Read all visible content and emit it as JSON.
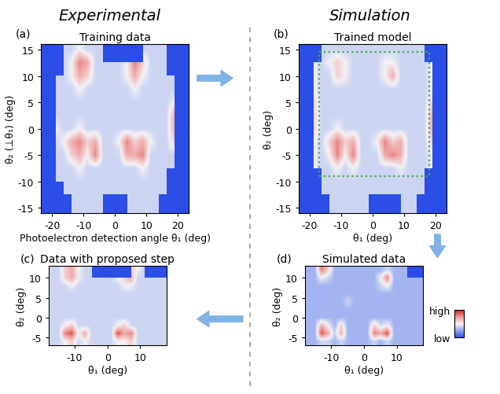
{
  "headings": {
    "left": "Experimental",
    "right": "Simulation"
  },
  "colorbar": {
    "range": [
      0,
      10
    ],
    "ticks": [
      {
        "value": 10,
        "label": "high"
      },
      {
        "value": 0,
        "label": "low"
      }
    ]
  },
  "chart_data": [
    {
      "type": "heatmap",
      "label": "(a)",
      "title": "Training data",
      "xlabel": "Photoelectron detection angle θ₁ (deg)",
      "ylabel": "θ₂ (⊥θ₁) (deg)",
      "xlim": [
        -23.5,
        23.5
      ],
      "ylim": [
        -16,
        16
      ],
      "xticks": [
        -20,
        -10,
        0,
        10,
        20
      ],
      "yticks": [
        -15,
        -10,
        -5,
        0,
        5,
        10,
        15
      ],
      "cell_x": [
        -23.75,
        -21.25,
        -18.75,
        -16.25,
        -13.75,
        -11.25,
        -8.75,
        -6.25,
        -3.75,
        -1.25,
        1.25,
        3.75,
        6.25,
        8.75,
        11.25,
        13.75,
        16.25,
        18.75,
        21.25,
        23.75
      ],
      "cell_y": [
        15,
        12.5,
        10,
        7.5,
        5,
        2.5,
        0,
        -2.5,
        -5,
        -7.5,
        -10,
        -12.5,
        -15
      ],
      "cells": [
        [
          null,
          null,
          null,
          4,
          4,
          5,
          4,
          4,
          4,
          null,
          null,
          null,
          null,
          4,
          4,
          4,
          4,
          null,
          null,
          null
        ],
        [
          null,
          null,
          null,
          4,
          5,
          8,
          7,
          4,
          4,
          4,
          4,
          5,
          8,
          6,
          4,
          4,
          4,
          null,
          null,
          null
        ],
        [
          null,
          null,
          4,
          4,
          5,
          7,
          6,
          4,
          4,
          4,
          4,
          5,
          7,
          5,
          4,
          4,
          4,
          4,
          null,
          null
        ],
        [
          null,
          null,
          4,
          4,
          4,
          5,
          4,
          4,
          4,
          4,
          4,
          4,
          5,
          4,
          4,
          4,
          4,
          4,
          null,
          null
        ],
        [
          null,
          null,
          4,
          4,
          4,
          4,
          4,
          4,
          4,
          4,
          4,
          4,
          4,
          4,
          4,
          4,
          4,
          5,
          null,
          null
        ],
        [
          null,
          null,
          4,
          4,
          4,
          4,
          4,
          4,
          4,
          4,
          4,
          4,
          4,
          4,
          4,
          4,
          4,
          7,
          null,
          null
        ],
        [
          null,
          null,
          5,
          4,
          4,
          5,
          4,
          4,
          4,
          4,
          4,
          4,
          4,
          4,
          4,
          4,
          4,
          7,
          null,
          null
        ],
        [
          null,
          null,
          4,
          5,
          7,
          8,
          6,
          7,
          4,
          4,
          5,
          8,
          6,
          7,
          5,
          4,
          4,
          6,
          null,
          null
        ],
        [
          null,
          null,
          4,
          4,
          6,
          7,
          5,
          8,
          4,
          4,
          4,
          7,
          7,
          8,
          4,
          4,
          4,
          4,
          null,
          null
        ],
        [
          null,
          null,
          4,
          4,
          4,
          5,
          4,
          4,
          4,
          4,
          4,
          4,
          4,
          5,
          4,
          4,
          4,
          4,
          null,
          null
        ],
        [
          null,
          null,
          4,
          4,
          4,
          4,
          4,
          4,
          4,
          4,
          4,
          4,
          4,
          4,
          4,
          4,
          4,
          null,
          null,
          null
        ],
        [
          null,
          null,
          null,
          4,
          4,
          4,
          4,
          4,
          4,
          4,
          4,
          4,
          4,
          4,
          4,
          4,
          4,
          null,
          null,
          null
        ],
        [
          null,
          null,
          null,
          null,
          4,
          4,
          4,
          4,
          4,
          null,
          null,
          4,
          4,
          4,
          4,
          4,
          null,
          null,
          null,
          null
        ]
      ]
    },
    {
      "type": "heatmap",
      "label": "(b)",
      "title": "Trained model",
      "xlabel": "θ₁ (deg)",
      "ylabel": "θ₂ (deg)",
      "xlim": [
        -23.5,
        23.5
      ],
      "ylim": [
        -16,
        16
      ],
      "xticks": [
        -20,
        -10,
        0,
        10,
        20
      ],
      "yticks": [
        -15,
        -10,
        -5,
        0,
        5,
        10,
        15
      ],
      "region": {
        "x": [
          -17,
          18
        ],
        "y": [
          -9,
          14.5
        ]
      },
      "cell_x": [
        -23.75,
        -21.25,
        -18.75,
        -16.25,
        -13.75,
        -11.25,
        -8.75,
        -6.25,
        -3.75,
        -1.25,
        1.25,
        3.75,
        6.25,
        8.75,
        11.25,
        13.75,
        16.25,
        18.75,
        21.25,
        23.75
      ],
      "cell_y": [
        15,
        12.5,
        10,
        7.5,
        5,
        2.5,
        0,
        -2.5,
        -5,
        -7.5,
        -10,
        -12.5,
        -15
      ],
      "cells": [
        [
          null,
          null,
          null,
          4,
          4,
          4,
          4,
          4,
          4,
          4,
          4,
          4,
          4,
          4,
          4,
          4,
          4,
          null,
          null,
          null
        ],
        [
          null,
          null,
          5,
          4,
          5,
          6,
          5,
          4,
          4,
          4,
          4,
          5,
          5,
          4,
          4,
          4,
          4,
          5,
          null,
          null
        ],
        [
          null,
          null,
          5,
          4,
          4,
          6,
          5,
          4,
          4,
          4,
          4,
          5,
          7,
          4,
          4,
          4,
          4,
          5,
          null,
          null
        ],
        [
          null,
          null,
          5,
          4,
          4,
          4,
          4,
          4,
          4,
          4,
          4,
          4,
          4,
          4,
          4,
          4,
          4,
          5,
          null,
          null
        ],
        [
          null,
          null,
          6,
          4,
          4,
          4,
          4,
          4,
          4,
          4,
          4,
          4,
          4,
          4,
          4,
          4,
          4,
          6,
          null,
          null
        ],
        [
          null,
          null,
          6,
          4,
          4,
          4,
          4,
          4,
          4,
          4,
          4,
          4,
          4,
          4,
          4,
          4,
          4,
          7,
          null,
          null
        ],
        [
          null,
          null,
          6,
          4,
          4,
          5,
          4,
          4,
          4,
          4,
          4,
          4,
          4,
          4,
          4,
          4,
          4,
          7,
          null,
          null
        ],
        [
          null,
          null,
          5,
          4,
          6,
          8,
          6,
          7,
          4,
          4,
          5,
          8,
          6,
          7,
          4,
          4,
          4,
          6,
          null,
          null
        ],
        [
          null,
          null,
          5,
          4,
          5,
          8,
          5,
          8,
          4,
          4,
          4,
          7,
          8,
          7,
          4,
          4,
          4,
          5,
          null,
          null
        ],
        [
          null,
          null,
          5,
          4,
          4,
          5,
          4,
          5,
          4,
          4,
          4,
          4,
          4,
          5,
          4,
          4,
          4,
          5,
          null,
          null
        ],
        [
          null,
          null,
          null,
          4,
          4,
          4,
          4,
          4,
          4,
          4,
          4,
          4,
          4,
          4,
          4,
          4,
          4,
          null,
          null,
          null
        ],
        [
          null,
          null,
          null,
          4,
          4,
          4,
          4,
          4,
          4,
          4,
          4,
          4,
          4,
          4,
          4,
          4,
          4,
          null,
          null,
          null
        ],
        [
          null,
          null,
          null,
          null,
          4,
          4,
          4,
          4,
          4,
          4,
          null,
          null,
          null,
          4,
          4,
          4,
          null,
          null,
          null,
          null
        ]
      ]
    },
    {
      "type": "heatmap",
      "label": "(c)",
      "title": "Data with proposed step",
      "xlabel": "θ₁ (deg)",
      "ylabel": "θ₂ (deg)",
      "xlim": [
        -18,
        18
      ],
      "ylim": [
        -7,
        13
      ],
      "xticks": [
        -10,
        0,
        10
      ],
      "yticks": [
        -5,
        0,
        5,
        10
      ],
      "cell_x": [
        -17,
        -15,
        -13,
        -11,
        -9,
        -7,
        -5,
        -3,
        -1,
        1,
        3,
        5,
        7,
        9,
        11,
        13,
        15,
        17
      ],
      "cell_y": [
        12,
        10,
        8,
        6,
        4,
        2,
        0,
        -2,
        -4,
        -6
      ],
      "cells": [
        [
          4,
          4,
          6,
          7,
          5,
          4,
          4,
          null,
          null,
          null,
          null,
          null,
          6,
          5,
          4,
          null,
          null,
          null
        ],
        [
          4,
          4,
          6,
          7,
          5,
          4,
          4,
          4,
          4,
          4,
          5,
          6,
          7,
          4,
          4,
          4,
          4,
          4
        ],
        [
          4,
          4,
          4,
          5,
          4,
          4,
          4,
          4,
          4,
          4,
          4,
          5,
          5,
          4,
          4,
          4,
          4,
          4
        ],
        [
          4,
          4,
          4,
          4,
          4,
          4,
          4,
          4,
          4,
          4,
          4,
          4,
          4,
          4,
          4,
          4,
          4,
          4
        ],
        [
          4,
          4,
          4,
          4,
          4,
          4,
          4,
          4,
          4,
          4,
          4,
          4,
          4,
          4,
          4,
          4,
          4,
          4
        ],
        [
          4,
          4,
          4,
          4,
          4,
          4,
          4,
          4,
          4,
          4,
          4,
          4,
          4,
          4,
          4,
          4,
          4,
          4
        ],
        [
          4,
          4,
          4,
          4,
          4,
          4,
          4,
          4,
          4,
          4,
          4,
          4,
          4,
          4,
          4,
          4,
          4,
          4
        ],
        [
          4,
          4,
          5,
          6,
          4,
          4,
          4,
          4,
          4,
          4,
          5,
          6,
          4,
          4,
          4,
          4,
          4,
          4
        ],
        [
          4,
          4,
          8,
          9,
          5,
          7,
          4,
          4,
          4,
          4,
          9,
          7,
          8,
          4,
          4,
          4,
          4,
          4
        ],
        [
          4,
          4,
          5,
          6,
          4,
          5,
          4,
          4,
          4,
          4,
          5,
          5,
          6,
          4,
          4,
          4,
          4,
          4
        ]
      ]
    },
    {
      "type": "heatmap",
      "label": "(d)",
      "title": "Simulated data",
      "xlabel": "θ₁ (deg)",
      "ylabel": "θ₂ (deg)",
      "xlim": [
        -18,
        18
      ],
      "ylim": [
        -7,
        13
      ],
      "xticks": [
        -10,
        0,
        10
      ],
      "yticks": [
        -5,
        0,
        5,
        10
      ],
      "cell_x": [
        -17,
        -15,
        -13,
        -11,
        -9,
        -7,
        -5,
        -3,
        -1,
        1,
        3,
        5,
        7,
        9,
        11,
        13,
        15,
        17
      ],
      "cell_y": [
        12,
        10,
        8,
        6,
        4,
        2,
        0,
        -2,
        -4,
        -6
      ],
      "cells": [
        [
          3,
          3,
          8,
          6,
          3,
          3,
          3,
          3,
          3,
          3,
          3,
          3,
          4,
          3,
          3,
          3,
          null,
          null
        ],
        [
          3,
          3,
          5,
          4,
          3,
          3,
          3,
          3,
          3,
          3,
          3,
          5,
          8,
          3,
          3,
          3,
          3,
          3
        ],
        [
          3,
          3,
          3,
          3,
          3,
          3,
          3,
          3,
          3,
          3,
          3,
          4,
          5,
          3,
          3,
          3,
          3,
          3
        ],
        [
          3,
          3,
          3,
          3,
          3,
          3,
          3,
          3,
          3,
          3,
          3,
          3,
          3,
          3,
          3,
          3,
          3,
          3
        ],
        [
          3,
          3,
          3,
          3,
          3,
          3,
          4,
          3,
          3,
          3,
          3,
          3,
          3,
          3,
          3,
          3,
          3,
          3
        ],
        [
          3,
          3,
          3,
          3,
          3,
          3,
          3,
          3,
          3,
          3,
          3,
          3,
          3,
          3,
          3,
          3,
          3,
          3
        ],
        [
          3,
          3,
          3,
          3,
          3,
          3,
          3,
          3,
          3,
          3,
          3,
          3,
          3,
          3,
          3,
          3,
          3,
          3
        ],
        [
          3,
          3,
          7,
          5,
          3,
          6,
          3,
          3,
          3,
          3,
          6,
          4,
          5,
          3,
          3,
          3,
          3,
          3
        ],
        [
          3,
          3,
          9,
          7,
          4,
          7,
          3,
          3,
          3,
          3,
          8,
          7,
          9,
          3,
          3,
          3,
          3,
          3
        ],
        [
          3,
          3,
          4,
          4,
          3,
          4,
          3,
          3,
          3,
          3,
          4,
          3,
          4,
          3,
          3,
          3,
          3,
          3
        ]
      ]
    }
  ]
}
